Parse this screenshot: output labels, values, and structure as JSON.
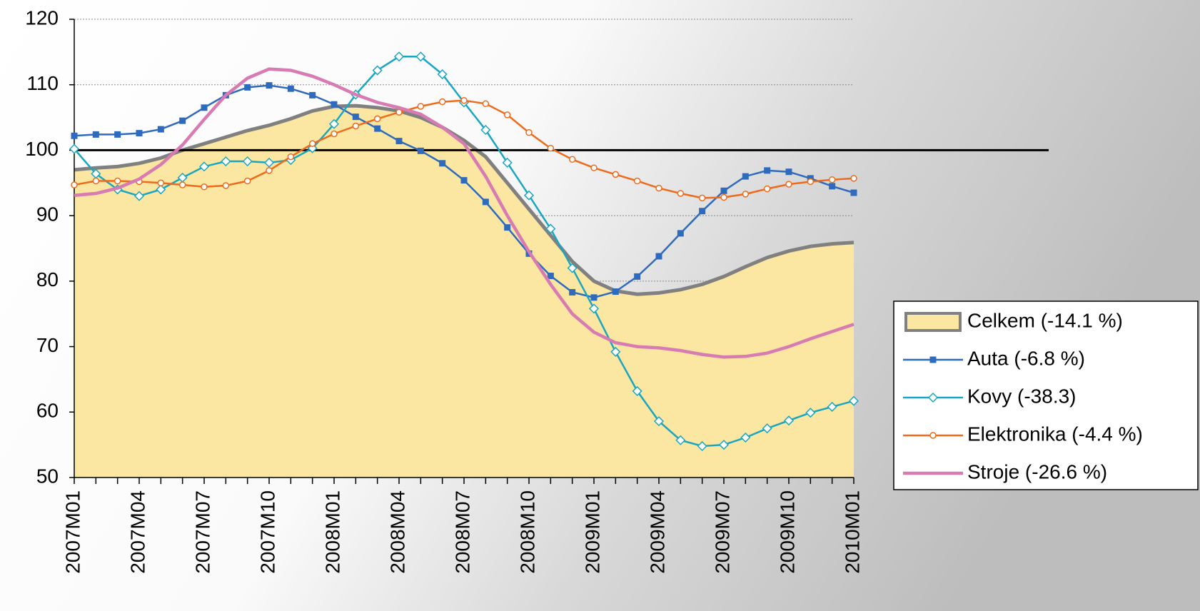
{
  "chart_data": {
    "type": "line",
    "categories": [
      "2007M01",
      null,
      null,
      "2007M04",
      null,
      null,
      "2007M07",
      null,
      null,
      "2007M10",
      null,
      null,
      "2008M01",
      null,
      null,
      "2008M04",
      null,
      null,
      "2008M07",
      null,
      null,
      "2008M10",
      null,
      null,
      "2009M01",
      null,
      null,
      "2009M04",
      null,
      null,
      "2009M07",
      null,
      null,
      "2009M10",
      null,
      null,
      "2010M01"
    ],
    "ylim": [
      50,
      120
    ],
    "yticks": [
      50,
      60,
      70,
      80,
      90,
      100,
      110,
      120
    ],
    "grid": true,
    "reference_line": 100,
    "series": [
      {
        "name": "Celkem (-14.1 %)",
        "color": "#808080",
        "fill": "#fbe7a1",
        "style": "area",
        "values": [
          97,
          97.3,
          97.5,
          98,
          98.8,
          100,
          101,
          102,
          103,
          103.8,
          104.8,
          106,
          106.7,
          106.8,
          106.5,
          106,
          105,
          103.5,
          101.5,
          99,
          95,
          91,
          87,
          83,
          80,
          78.5,
          78,
          78.2,
          78.7,
          79.5,
          80.7,
          82.2,
          83.6,
          84.6,
          85.3,
          85.7,
          85.9
        ]
      },
      {
        "name": "Auta (-6.8 %)",
        "color": "#2f6bbd",
        "marker": "square",
        "values": [
          102.2,
          102.4,
          102.4,
          102.6,
          103.2,
          104.5,
          106.5,
          108.4,
          109.6,
          109.9,
          109.4,
          108.4,
          107,
          105.1,
          103.3,
          101.4,
          99.9,
          98,
          95.4,
          92.1,
          88.2,
          84.2,
          80.8,
          78.3,
          77.5,
          78.4,
          80.7,
          83.8,
          87.3,
          90.7,
          93.8,
          96,
          96.9,
          96.7,
          95.7,
          94.5,
          93.5
        ]
      },
      {
        "name": "Kovy (-38.3)",
        "color": "#1aa6c0",
        "marker": "diamond",
        "values": [
          100.2,
          96.4,
          94,
          93,
          94,
          95.8,
          97.5,
          98.3,
          98.3,
          98.1,
          98.5,
          100.3,
          104,
          108.5,
          112.2,
          114.3,
          114.3,
          111.6,
          107.3,
          103.1,
          98.1,
          93.1,
          88,
          82,
          75.8,
          69.2,
          63.2,
          58.6,
          55.7,
          54.8,
          55,
          56.1,
          57.5,
          58.7,
          59.9,
          60.8,
          61.7
        ]
      },
      {
        "name": "Elektronika (-4.4 %)",
        "color": "#ee6a1c",
        "marker": "circle",
        "values": [
          94.7,
          95.3,
          95.3,
          95.2,
          95,
          94.7,
          94.4,
          94.6,
          95.3,
          96.9,
          99,
          101,
          102.5,
          103.7,
          104.8,
          105.8,
          106.7,
          107.4,
          107.6,
          107.1,
          105.4,
          102.7,
          100.3,
          98.6,
          97.3,
          96.3,
          95.3,
          94.2,
          93.4,
          92.7,
          92.8,
          93.3,
          94.1,
          94.8,
          95.2,
          95.5,
          95.7
        ]
      },
      {
        "name": "Stroje (-26.6 %)",
        "color": "#d77bb2",
        "marker": "none",
        "values": [
          93.1,
          93.4,
          94.2,
          95.6,
          97.8,
          100.8,
          104.7,
          108.4,
          111,
          112.4,
          112.2,
          111.3,
          110,
          108.5,
          107.3,
          106.5,
          105.5,
          103.5,
          101,
          96,
          90,
          84.5,
          79.5,
          75,
          72.2,
          70.6,
          70,
          69.8,
          69.4,
          68.8,
          68.4,
          68.5,
          69,
          70,
          71.2,
          72.3,
          73.4
        ]
      }
    ]
  }
}
